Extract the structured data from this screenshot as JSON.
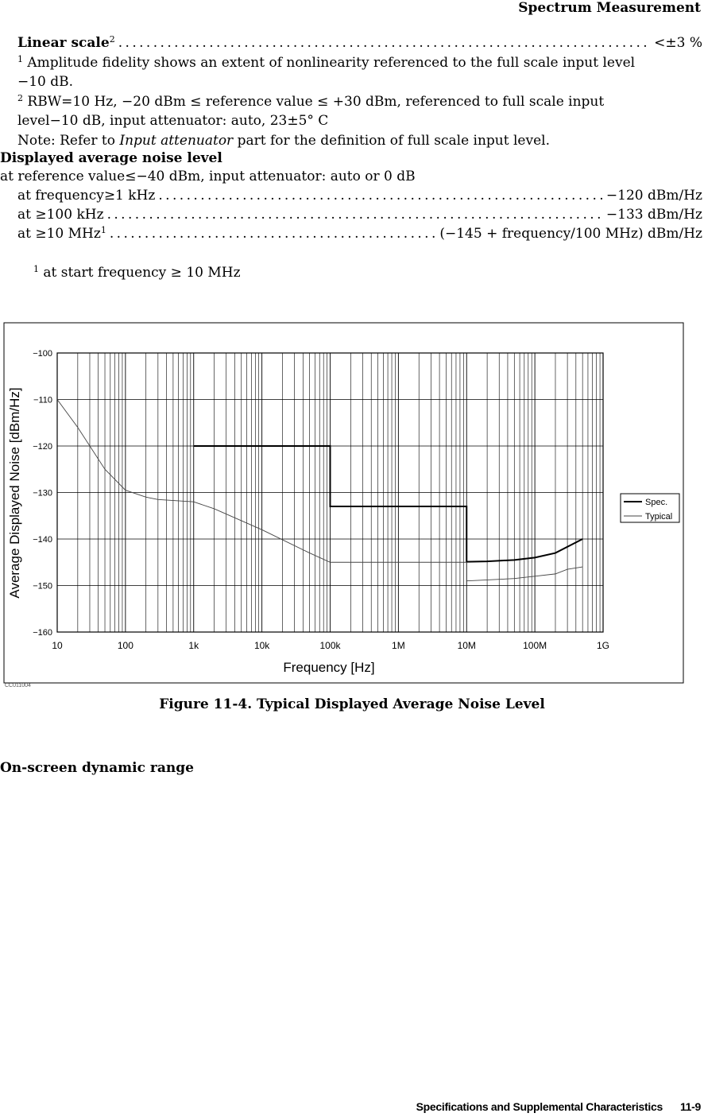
{
  "header": {
    "title": "Spectrum Measurement"
  },
  "linear_scale": {
    "label": "Linear scale",
    "sup": "2",
    "value": "<±3 %"
  },
  "footnotes": {
    "fn1_num": "1",
    "fn1_line1": "Amplitude fidelity shows an extent of nonlinearity referenced to the full scale input level",
    "fn1_line2": "−10 dB.",
    "fn2_num": "2",
    "fn2_line1": "RBW=10 Hz, −20 dBm ≤ reference value ≤ +30 dBm, referenced to full scale input",
    "fn2_line2": "level−10 dB, input attenuator: auto, 23±5° C"
  },
  "note": {
    "prefix": "Note: Refer to ",
    "italic": "Input attenuator",
    "suffix": " part for the definition of full scale input level."
  },
  "danl": {
    "heading": "Displayed average noise level",
    "condition": "at reference value≤−40 dBm, input attenuator: auto or 0 dB",
    "rows": [
      {
        "label": "at frequency≥1 kHz",
        "sup": "",
        "value": "−120 dBm/Hz"
      },
      {
        "label": "at ≥100 kHz",
        "sup": "",
        "value": "−133 dBm/Hz"
      },
      {
        "label": "at ≥10 MHz",
        "sup": "1",
        "value": "(−145 + frequency/100 MHz) dBm/Hz"
      }
    ],
    "footnote_num": "1",
    "footnote_text": "at start frequency ≥ 10 MHz"
  },
  "figure": {
    "caption": "Figure 11-4. Typical Displayed Average Noise Level",
    "code": "CC011004"
  },
  "chart_data": {
    "type": "line",
    "title": "",
    "xlabel": "Frequency [Hz]",
    "ylabel": "Average Displayed Noise [dBm/Hz]",
    "xscale": "log",
    "xlim": [
      10,
      1000000000
    ],
    "ylim": [
      -160,
      -100
    ],
    "x_ticks": [
      10,
      100,
      1000,
      10000,
      100000,
      1000000,
      10000000,
      100000000,
      1000000000
    ],
    "x_tick_labels": [
      "10",
      "100",
      "1k",
      "10k",
      "100k",
      "1M",
      "10M",
      "100M",
      "1G"
    ],
    "y_ticks": [
      -100,
      -110,
      -120,
      -130,
      -140,
      -150,
      -160
    ],
    "y_tick_labels": [
      "−100",
      "−110",
      "−120",
      "−130",
      "−140",
      "−150",
      "−160"
    ],
    "grid": true,
    "legend": "right",
    "series": [
      {
        "name": "Spec.",
        "color": "#000000",
        "segments": [
          [
            [
              1000,
              -120
            ],
            [
              100000,
              -120
            ],
            [
              100000,
              -133
            ],
            [
              10000000,
              -133
            ],
            [
              10000000,
              -145
            ]
          ],
          [
            [
              10000000,
              -144.9
            ],
            [
              20000000,
              -144.8
            ],
            [
              50000000,
              -144.5
            ],
            [
              100000000,
              -144
            ],
            [
              200000000,
              -143
            ],
            [
              500000000,
              -140
            ]
          ]
        ]
      },
      {
        "name": "Typical",
        "color": "#444444",
        "segments": [
          [
            [
              10,
              -110
            ],
            [
              20,
              -116
            ],
            [
              50,
              -125
            ],
            [
              100,
              -129.5
            ],
            [
              200,
              -131
            ],
            [
              300,
              -131.5
            ],
            [
              1000,
              -132
            ],
            [
              2000,
              -133.5
            ],
            [
              10000,
              -138
            ],
            [
              50000,
              -143
            ],
            [
              100000,
              -145
            ],
            [
              1000000,
              -145
            ],
            [
              10000000,
              -145
            ]
          ],
          [
            [
              10000000,
              -149
            ],
            [
              20000000,
              -148.8
            ],
            [
              50000000,
              -148.5
            ],
            [
              100000000,
              -148
            ],
            [
              200000000,
              -147.5
            ],
            [
              300000000,
              -146.5
            ],
            [
              500000000,
              -146
            ]
          ]
        ]
      }
    ]
  },
  "section2": {
    "heading": "On-screen dynamic range"
  },
  "footer": {
    "text": "Specifications and Supplemental Characteristics",
    "page": "11-9"
  }
}
